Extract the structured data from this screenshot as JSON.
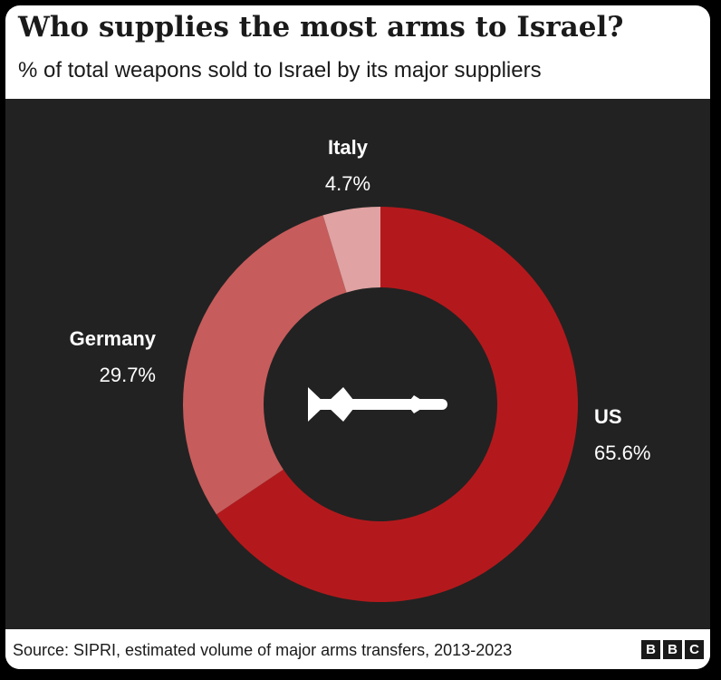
{
  "header": {
    "title": "Who supplies the most arms to Israel?",
    "subtitle": "% of total weapons sold to Israel by its major suppliers"
  },
  "footer": {
    "source": "Source: SIPRI, estimated volume of major arms transfers, 2013-2023",
    "logo_letters": [
      "B",
      "B",
      "C"
    ]
  },
  "center_icon": "missile-icon",
  "colors": {
    "background": "#222222",
    "US": "#b3191c",
    "Germany": "#c75c5c",
    "Italy": "#e0a2a2"
  },
  "chart_data": {
    "type": "pie",
    "variant": "donut",
    "title": "Who supplies the most arms to Israel?",
    "subtitle": "% of total weapons sold to Israel by its major suppliers",
    "slices": [
      {
        "name": "US",
        "value": 65.6,
        "label": "65.6%",
        "color": "#b3191c"
      },
      {
        "name": "Germany",
        "value": 29.7,
        "label": "29.7%",
        "color": "#c75c5c"
      },
      {
        "name": "Italy",
        "value": 4.7,
        "label": "4.7%",
        "color": "#e0a2a2"
      }
    ],
    "unit": "%",
    "legend": "direct labels"
  }
}
